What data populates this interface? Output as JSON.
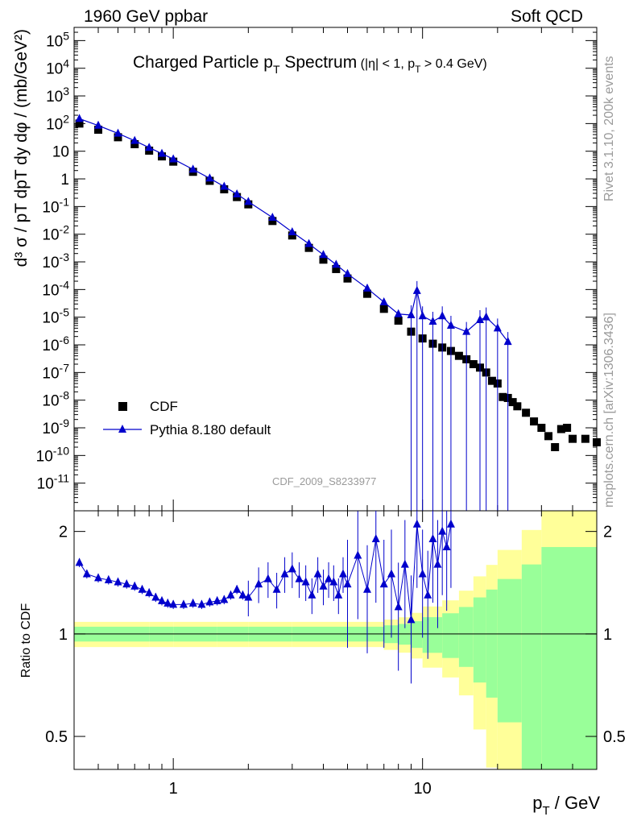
{
  "header": {
    "left": "1960 GeV ppbar",
    "right": "Soft QCD"
  },
  "side": {
    "rivet": "Rivet 3.1.10,  200k events",
    "mcplots": "mcplots.cern.ch [arXiv:1306.3436]"
  },
  "source_label": "CDF_2009_S8233977",
  "colors": {
    "mc": "#0000cc",
    "data": "#000000",
    "band_inner": "#99ff99",
    "band_outer": "#ffff99"
  },
  "chart_data": [
    {
      "type": "scatter",
      "title": "Charged Particle p_T Spectrum",
      "title_main": "Charged Particle p",
      "title_sub": "T",
      "title_tail": " Spectrum",
      "title_cut": "(|η| < 1, p",
      "title_cut_sub": "T",
      "title_cut_tail": " > 0.4 GeV)",
      "xlabel": "p_T / GeV",
      "ylabel": "d^3 σ / p_T dp_T dy dφ / (mb/GeV^2)",
      "xscale": "log",
      "yscale": "log",
      "xlim": [
        0.4,
        50
      ],
      "ylim": [
        1e-12,
        300000
      ],
      "legend": {
        "position": "bottom-left",
        "entries": [
          "CDF",
          "Pythia 8.180 default"
        ]
      },
      "y_ticks": [
        "10^5",
        "10^4",
        "10^3",
        "10^2",
        "10",
        "1",
        "10^-1",
        "10^-2",
        "10^-3",
        "10^-4",
        "10^-5",
        "10^-6",
        "10^-7",
        "10^-8",
        "10^-9",
        "10^-10",
        "10^-11"
      ],
      "series": [
        {
          "name": "CDF",
          "marker": "square",
          "x": [
            0.42,
            0.5,
            0.6,
            0.7,
            0.8,
            0.9,
            1.0,
            1.2,
            1.4,
            1.6,
            1.8,
            2.0,
            2.5,
            3.0,
            3.5,
            4.0,
            4.5,
            5.0,
            6.0,
            7.0,
            8.0,
            9.0,
            10,
            11,
            12,
            13,
            14,
            15,
            16,
            17,
            18,
            19,
            20,
            21,
            22,
            23,
            24,
            26,
            28,
            30,
            32,
            34,
            36,
            38,
            40,
            45,
            50
          ],
          "y": [
            100,
            60,
            32,
            18,
            10.5,
            6.5,
            4.2,
            1.8,
            0.85,
            0.42,
            0.22,
            0.12,
            0.03,
            0.009,
            0.0032,
            0.0012,
            0.00055,
            0.00025,
            7e-05,
            2e-05,
            7.5e-06,
            3e-06,
            1.7e-06,
            1.1e-06,
            8e-07,
            6e-07,
            4e-07,
            3e-07,
            2e-07,
            1.5e-07,
            1e-07,
            5e-08,
            4e-08,
            1.3e-08,
            1.2e-08,
            8.5e-09,
            6e-09,
            3.5e-09,
            1.7e-09,
            1e-09,
            5e-10,
            2e-10,
            9e-10,
            1e-09,
            4e-10,
            4e-10,
            3e-10
          ]
        },
        {
          "name": "Pythia 8.180 default",
          "marker": "triangle",
          "x": [
            0.42,
            0.5,
            0.6,
            0.7,
            0.8,
            0.9,
            1.0,
            1.2,
            1.4,
            1.6,
            1.8,
            2.0,
            2.5,
            3.0,
            3.5,
            4.0,
            4.5,
            5.0,
            6.0,
            7.0,
            8.0,
            9.0,
            9.5,
            10,
            11,
            12,
            13,
            15,
            17,
            18,
            20,
            22
          ],
          "y": [
            150,
            85,
            44,
            24,
            13.5,
            8.2,
            5.2,
            2.2,
            1.05,
            0.53,
            0.28,
            0.15,
            0.04,
            0.012,
            0.0045,
            0.0018,
            0.0008,
            0.00037,
            0.00011,
            3.5e-05,
            1.3e-05,
            1.2e-05,
            9e-05,
            1.1e-05,
            7e-06,
            1.1e-05,
            5e-06,
            3e-06,
            8e-06,
            1e-05,
            4e-06,
            1.3e-06
          ]
        }
      ]
    },
    {
      "type": "scatter",
      "ylabel": "Ratio to CDF",
      "xlabel": "p_T / GeV",
      "xscale": "log",
      "yscale": "log",
      "xlim": [
        0.4,
        50
      ],
      "ylim": [
        0.4,
        2.3
      ],
      "x_ticks": [
        "1",
        "10"
      ],
      "y_ticks": [
        "0.5",
        "1",
        "2"
      ],
      "series": [
        {
          "name": "Pythia 8.180 default",
          "marker": "triangle",
          "x": [
            0.42,
            0.45,
            0.5,
            0.55,
            0.6,
            0.65,
            0.7,
            0.75,
            0.8,
            0.85,
            0.9,
            0.95,
            1.0,
            1.1,
            1.2,
            1.3,
            1.4,
            1.5,
            1.6,
            1.7,
            1.8,
            1.9,
            2.0,
            2.2,
            2.4,
            2.6,
            2.8,
            3.0,
            3.2,
            3.4,
            3.6,
            3.8,
            4.0,
            4.2,
            4.4,
            4.6,
            4.8,
            5.0,
            5.5,
            6.0,
            6.5,
            7.0,
            7.5,
            8.0,
            8.5,
            9.0,
            9.5,
            10,
            10.5,
            11,
            11.5,
            12,
            12.5,
            13
          ],
          "y": [
            1.62,
            1.5,
            1.46,
            1.44,
            1.42,
            1.4,
            1.38,
            1.35,
            1.32,
            1.28,
            1.25,
            1.23,
            1.22,
            1.22,
            1.23,
            1.22,
            1.24,
            1.25,
            1.26,
            1.3,
            1.35,
            1.3,
            1.28,
            1.4,
            1.45,
            1.35,
            1.5,
            1.55,
            1.45,
            1.42,
            1.3,
            1.5,
            1.38,
            1.45,
            1.42,
            1.3,
            1.5,
            1.4,
            1.7,
            1.35,
            1.9,
            1.4,
            1.5,
            1.2,
            1.6,
            1.1,
            2.1,
            1.5,
            1.3,
            1.9,
            1.6,
            2.0,
            1.8,
            2.1
          ]
        }
      ],
      "band_inner_halfwidth": [
        0.05,
        0.05,
        0.05,
        0.05,
        0.05,
        0.05,
        0.05,
        0.05,
        0.05,
        0.05,
        0.06,
        0.07,
        0.09,
        0.12,
        0.15,
        0.2,
        0.28,
        0.35,
        0.45,
        0.6,
        0.8,
        1.0
      ],
      "band_x": [
        0.4,
        0.6,
        0.8,
        1,
        1.5,
        2,
        3,
        4,
        5,
        6,
        7,
        8,
        9,
        10,
        12,
        14,
        16,
        18,
        20,
        25,
        30,
        50
      ]
    }
  ]
}
